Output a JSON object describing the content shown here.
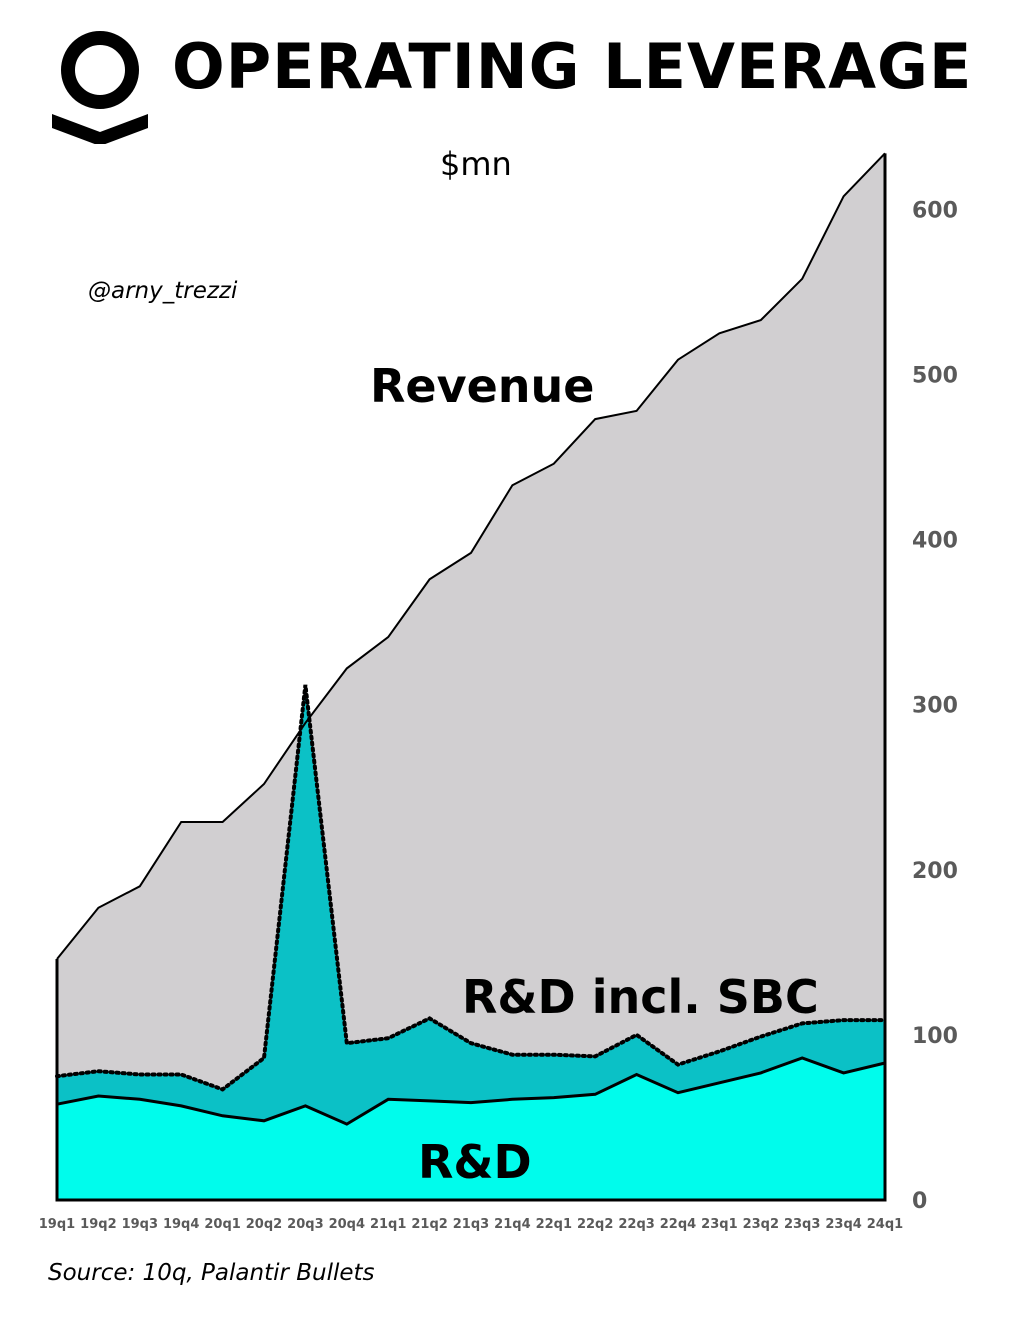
{
  "header": {
    "title": "OPERATING LEVERAGE",
    "logo_icon": "palantir-logo-icon"
  },
  "unit_label": "$mn",
  "handle": "@arny_trezzi",
  "source": "Source: 10q, Palantir Bullets",
  "colors": {
    "revenue_fill": "#d1cfd1",
    "rd_sbc_fill": "#0bc1c6",
    "rd_fill": "#00fcec",
    "line": "#000000",
    "tick_text": "#5a5a5a"
  },
  "chart_data": {
    "type": "area",
    "title": "OPERATING LEVERAGE",
    "ylabel": "$mn",
    "xlabel": "",
    "ylim": [
      0,
      633
    ],
    "yticks": [
      0,
      100,
      200,
      300,
      400,
      500,
      600
    ],
    "y_axis_side": "right",
    "grid": false,
    "legend": "none",
    "categories": [
      "19q1",
      "19q2",
      "19q3",
      "19q4",
      "20q1",
      "20q2",
      "20q3",
      "20q4",
      "21q1",
      "21q2",
      "21q3",
      "21q4",
      "22q1",
      "22q2",
      "22q3",
      "22q4",
      "23q1",
      "23q2",
      "23q3",
      "23q4",
      "24q1"
    ],
    "series": [
      {
        "name": "Revenue",
        "line_style": "solid",
        "values": [
          146,
          177,
          190,
          229,
          229,
          252,
          289,
          322,
          341,
          376,
          392,
          433,
          446,
          473,
          478,
          509,
          525,
          533,
          558,
          608,
          634
        ]
      },
      {
        "name": "R&D incl. SBC",
        "line_style": "dotted",
        "values": [
          75,
          78,
          76,
          76,
          67,
          86,
          312,
          95,
          98,
          110,
          95,
          88,
          88,
          87,
          100,
          82,
          90,
          99,
          107,
          109,
          109
        ]
      },
      {
        "name": "R&D",
        "line_style": "solid",
        "values": [
          58,
          63,
          61,
          57,
          51,
          48,
          57,
          46,
          61,
          60,
          59,
          61,
          62,
          64,
          76,
          65,
          71,
          77,
          86,
          77,
          83
        ]
      }
    ]
  }
}
